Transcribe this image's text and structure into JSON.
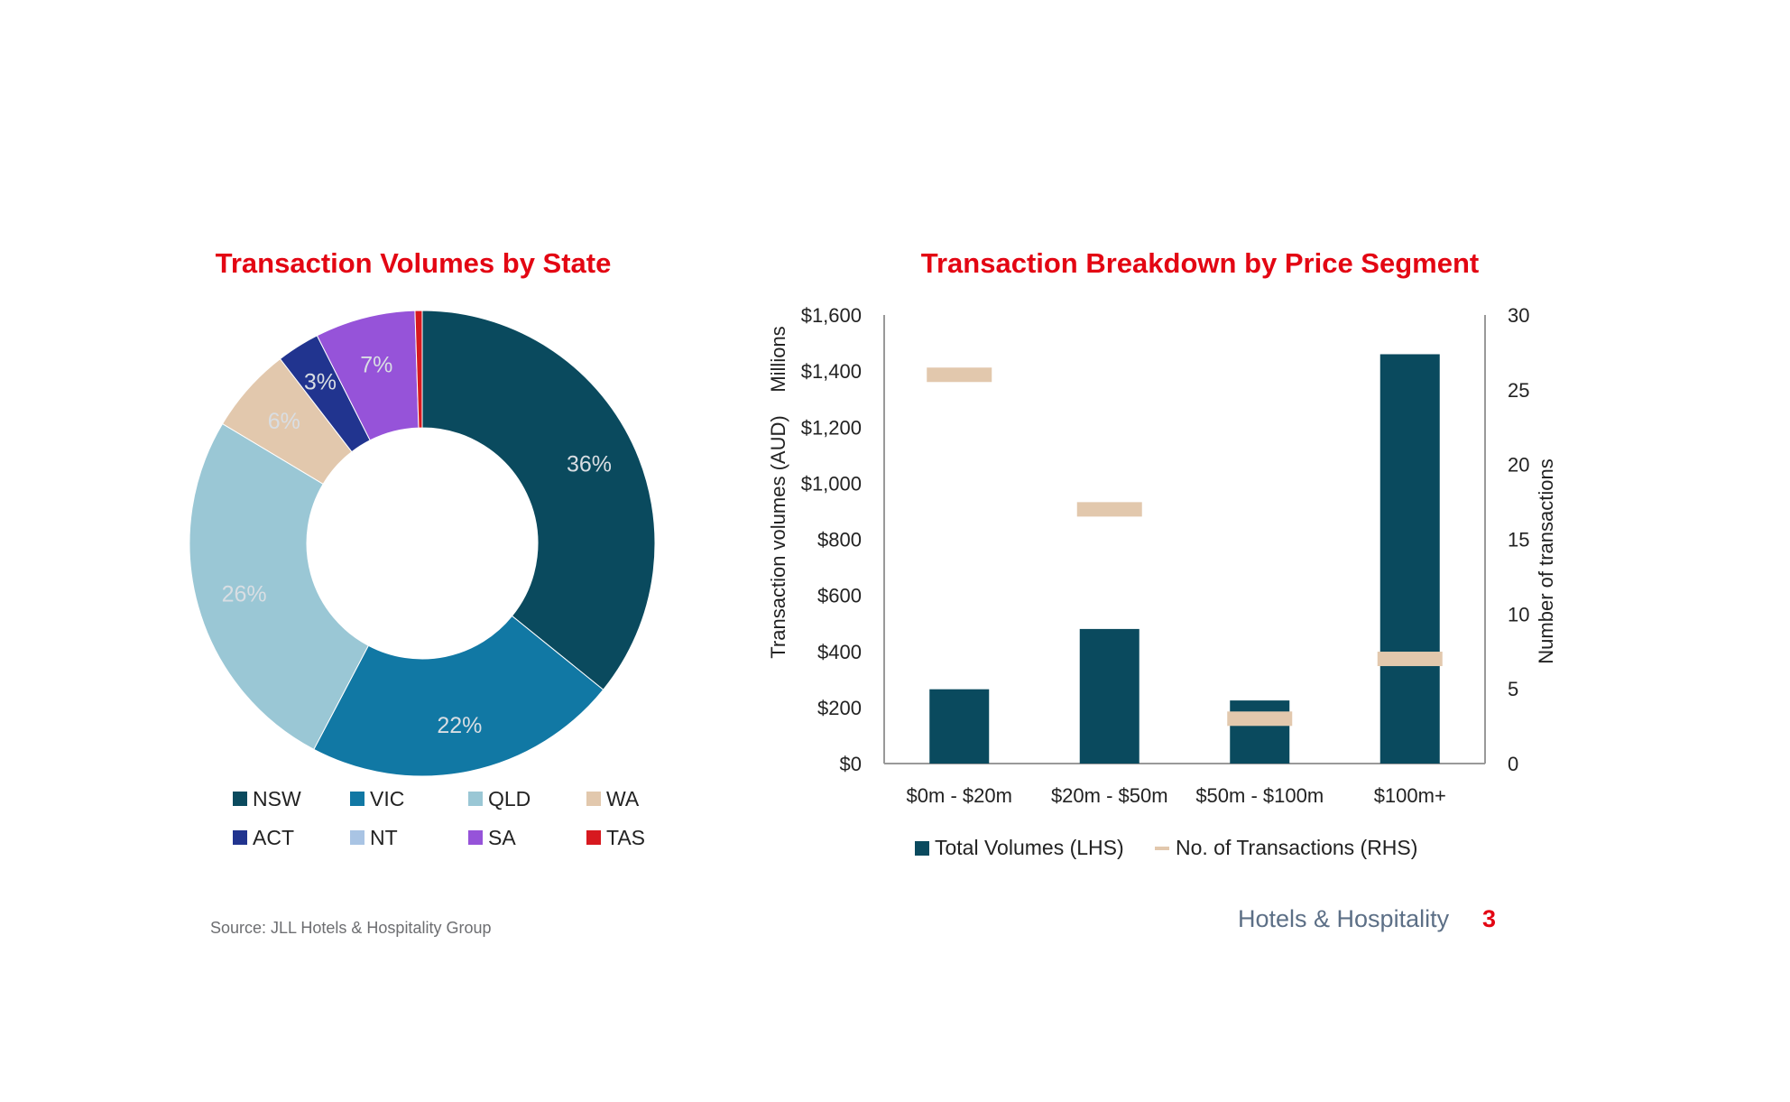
{
  "chart_data": [
    {
      "type": "pie",
      "title": "Transaction Volumes by State",
      "donut": true,
      "categories": [
        "NSW",
        "VIC",
        "QLD",
        "WA",
        "ACT",
        "NT",
        "SA",
        "TAS"
      ],
      "values": [
        36,
        22,
        26,
        6,
        3,
        0,
        7,
        0.5
      ],
      "labels": [
        "36%",
        "22%",
        "26%",
        "6%",
        "3%",
        "",
        "7%",
        ""
      ],
      "colors": [
        "#0a4a5e",
        "#1178a4",
        "#9ac7d5",
        "#e2c8ad",
        "#21348f",
        "#a9c4e4",
        "#9653d9",
        "#d7191f"
      ],
      "legend_position": "bottom"
    },
    {
      "type": "bar",
      "title": "Transaction Breakdown by Price Segment",
      "categories": [
        "$0m - $20m",
        "$20m - $50m",
        "$50m - $100m",
        "$100m+"
      ],
      "series": [
        {
          "name": "Total Volumes (LHS)",
          "values": [
            265,
            480,
            225,
            1460
          ],
          "color": "#0a4a5e",
          "axis": "left"
        },
        {
          "name": "No. of Transactions (RHS)",
          "values": [
            26,
            17,
            3,
            7
          ],
          "color": "#e2c8ad",
          "axis": "right"
        }
      ],
      "ylabel": "Transaction volumes (AUD)",
      "ylabel_units": "Millions",
      "y2label": "Number of transactions",
      "ylim": [
        0,
        1600
      ],
      "y2lim": [
        0,
        30
      ],
      "yticks": [
        "$0",
        "$200",
        "$400",
        "$600",
        "$800",
        "$1,000",
        "$1,200",
        "$1,400",
        "$1,600"
      ],
      "y2ticks": [
        "0",
        "5",
        "10",
        "15",
        "20",
        "25",
        "30"
      ],
      "grid": false,
      "legend_position": "bottom"
    }
  ],
  "footer": {
    "source": "Source: JLL Hotels & Hospitality Group",
    "brand": "Hotels & Hospitality",
    "page_number": "3"
  }
}
